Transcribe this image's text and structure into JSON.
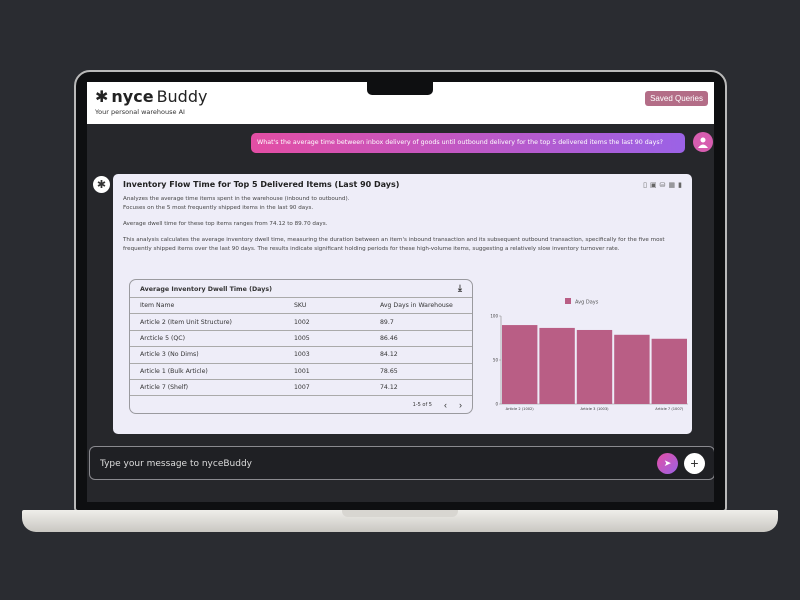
{
  "header": {
    "brand_bold": "nyce",
    "brand_light": "Buddy",
    "tagline": "Your personal warehouse AI",
    "saved_queries": "Saved Queries"
  },
  "user_message": "What's the average time between inbox delivery of goods until outbound delivery for the top 5 delivered items the last 90 days?",
  "response": {
    "title": "Inventory Flow Time for Top 5 Delivered Items (Last 90 Days)",
    "tool_icons": [
      "document-icon",
      "save-icon",
      "database-icon",
      "table-icon",
      "chart-icon"
    ],
    "desc1": "Analyzes the average time items spent in the warehouse (inbound to outbound).",
    "desc2": "Focuses on the 5 most frequently shipped items in the last 90 days.",
    "desc3": "Average dwell time for these top items ranges from 74.12 to 89.70 days.",
    "desc4": "This analysis calculates the average inventory dwell time, measuring the duration between an item's inbound transaction and its subsequent outbound transaction, specifically for the five most frequently shipped items over the last 90 days. The results indicate significant holding periods for these high-volume items, suggesting a relatively slow inventory turnover rate.",
    "table": {
      "title": "Average Inventory Dwell Time (Days)",
      "columns": [
        "Item Name",
        "SKU",
        "Avg Days in Warehouse"
      ],
      "rows": [
        [
          "Article 2 (Item Unit Structure)",
          "1002",
          "89.7"
        ],
        [
          "Arcticle 5 (QC)",
          "1005",
          "86.46"
        ],
        [
          "Article 3 (No Dims)",
          "1003",
          "84.12"
        ],
        [
          "Article 1 (Bulk Article)",
          "1001",
          "78.65"
        ],
        [
          "Article 7 (Shelf)",
          "1007",
          "74.12"
        ]
      ],
      "pagination": "1-5 of 5"
    }
  },
  "chart_data": {
    "type": "bar",
    "categories": [
      "Article 2 (1002)",
      "Article 5 (1005)",
      "Article 3 (1003)",
      "Article 1 (1001)",
      "Article 7 (1007)"
    ],
    "visible_tick_labels": [
      "Article 2 (1002)",
      "Article 3 (1003)",
      "Article 7 (1007)"
    ],
    "series": [
      {
        "name": "Avg Days",
        "values": [
          89.7,
          86.46,
          84.12,
          78.65,
          74.12
        ]
      }
    ],
    "ylim": [
      0,
      100
    ],
    "yticks": [
      0,
      50,
      100
    ],
    "legend": "top",
    "color": "#b95e85"
  },
  "composer": {
    "placeholder": "Type your message to nyceBuddy"
  }
}
